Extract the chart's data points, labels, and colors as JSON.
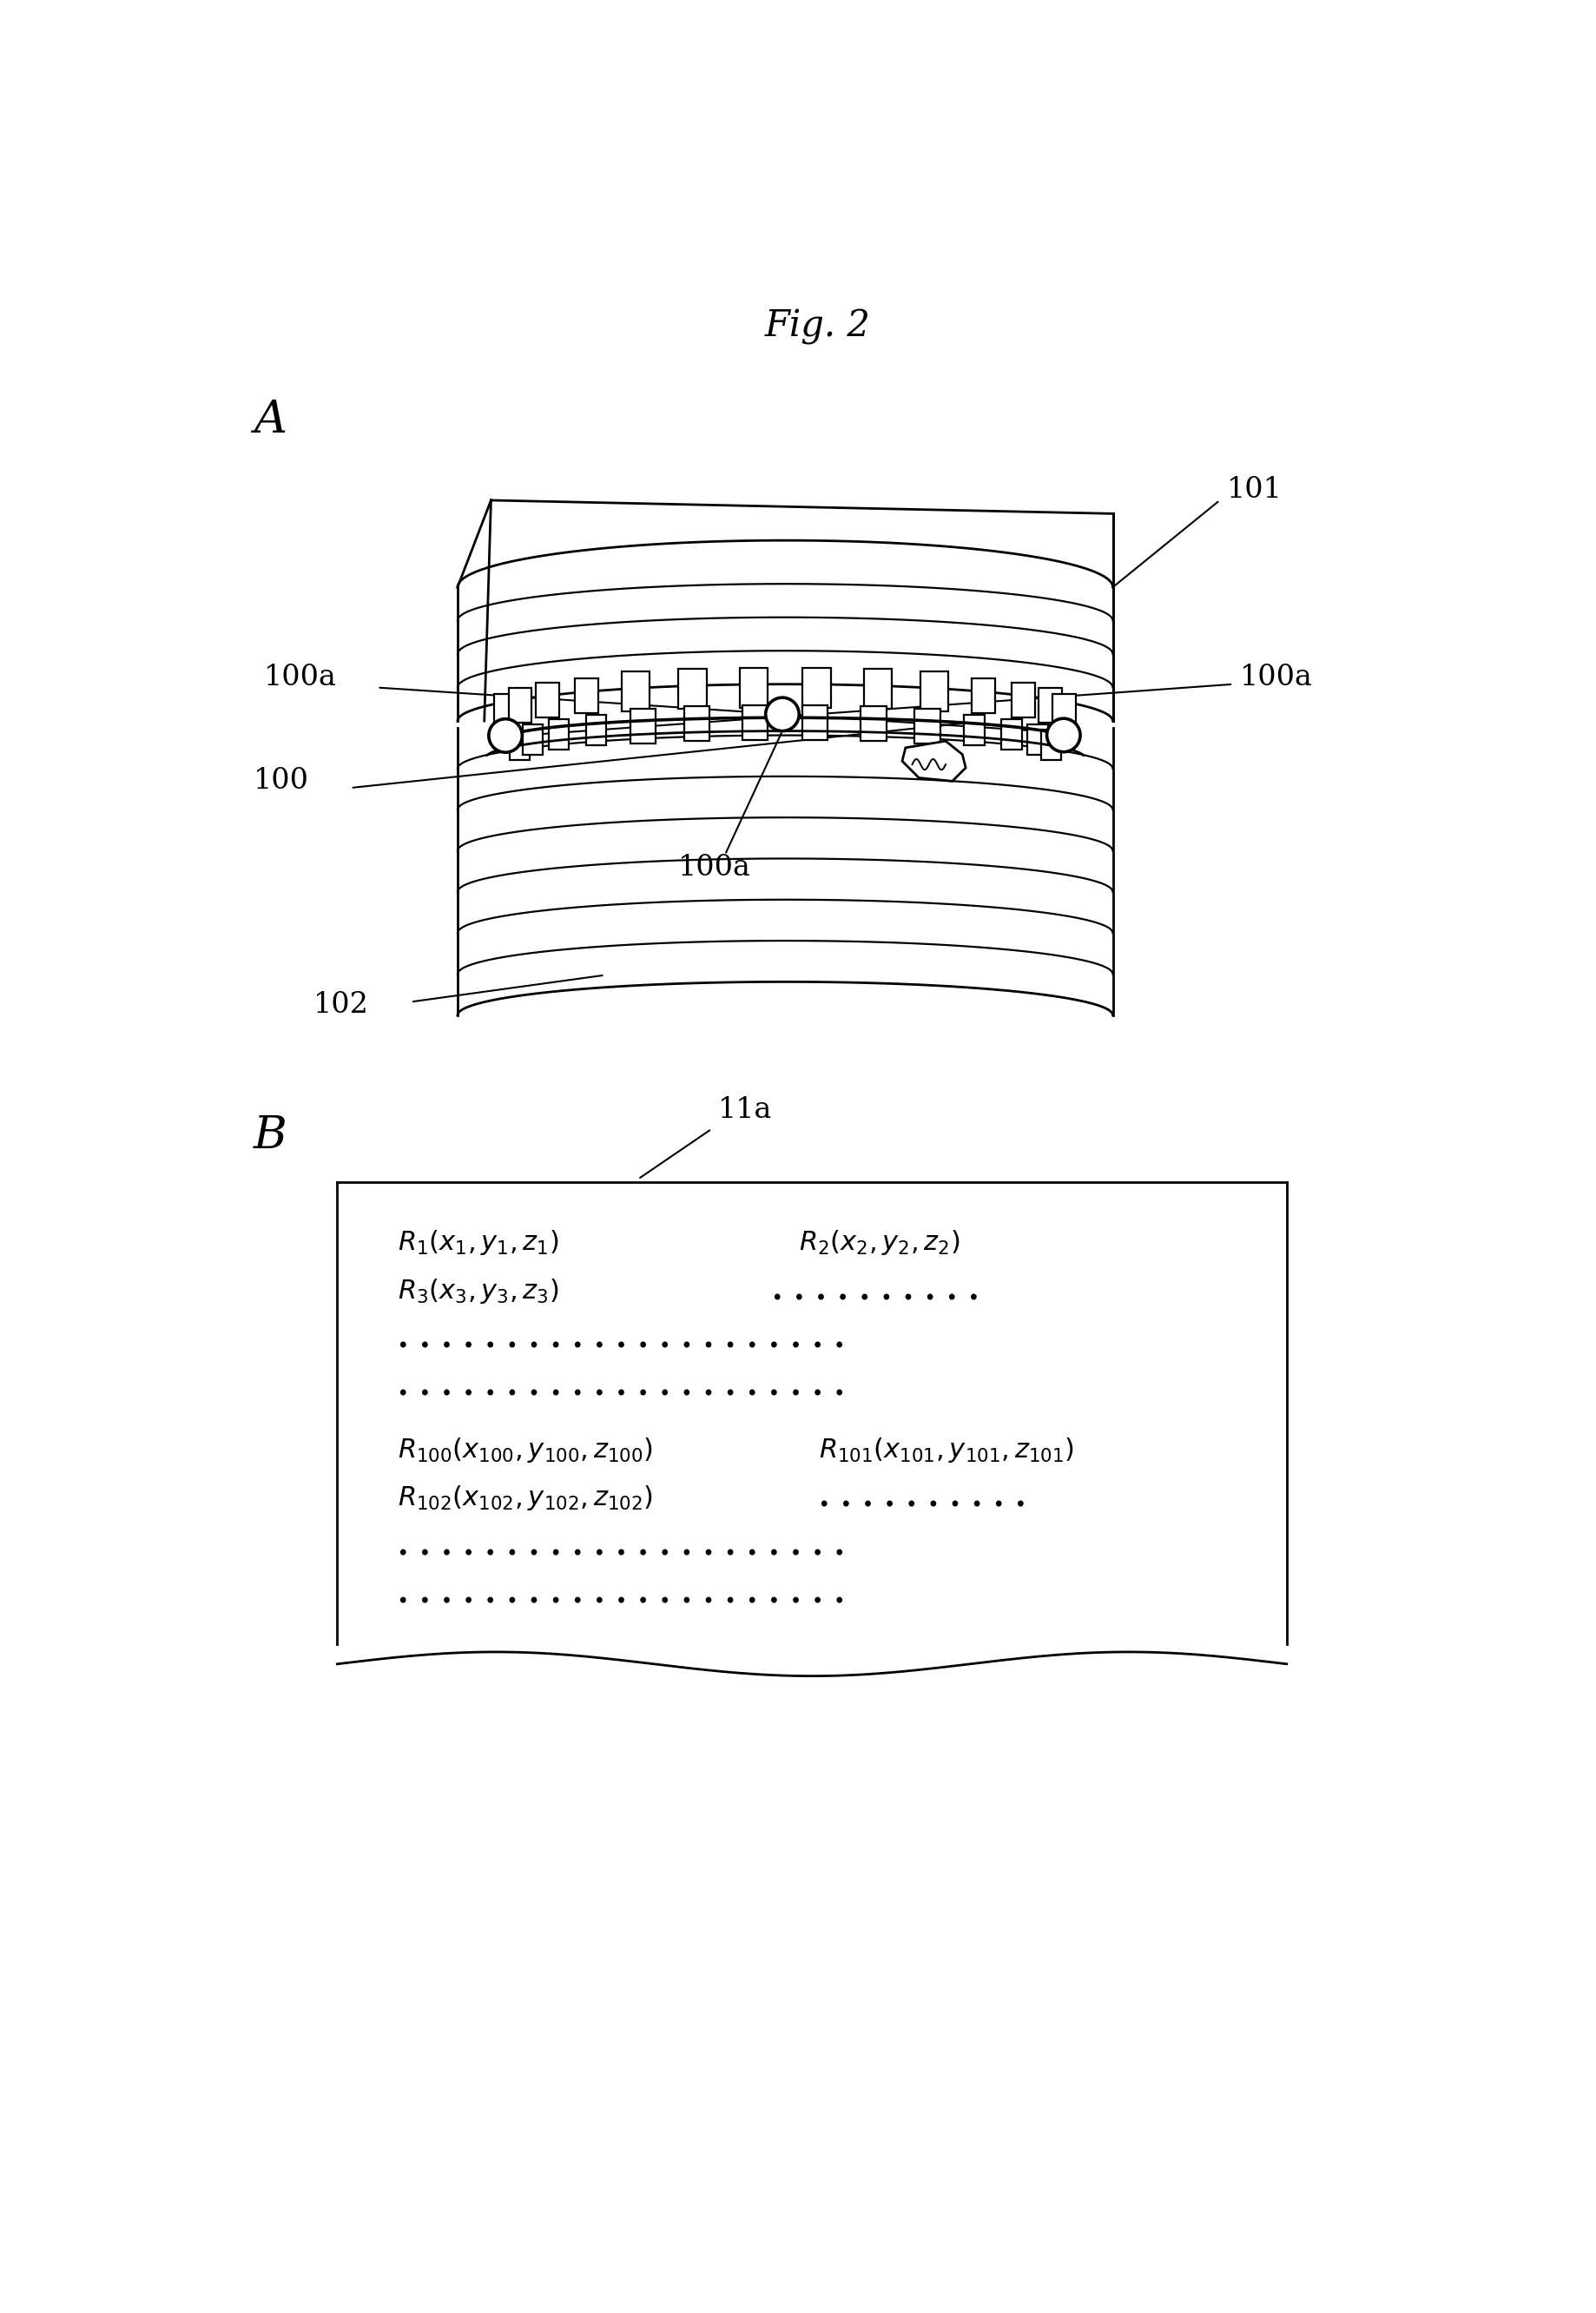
{
  "title": "Fig. 2",
  "label_A": "A",
  "label_B": "B",
  "label_11a": "11a",
  "label_101": "101",
  "label_100": "100",
  "label_102": "102",
  "bg_color": "#ffffff",
  "line_color": "#000000",
  "font_size_title": 30,
  "font_size_labels": 24,
  "font_size_data": 22,
  "lw": 2.0
}
